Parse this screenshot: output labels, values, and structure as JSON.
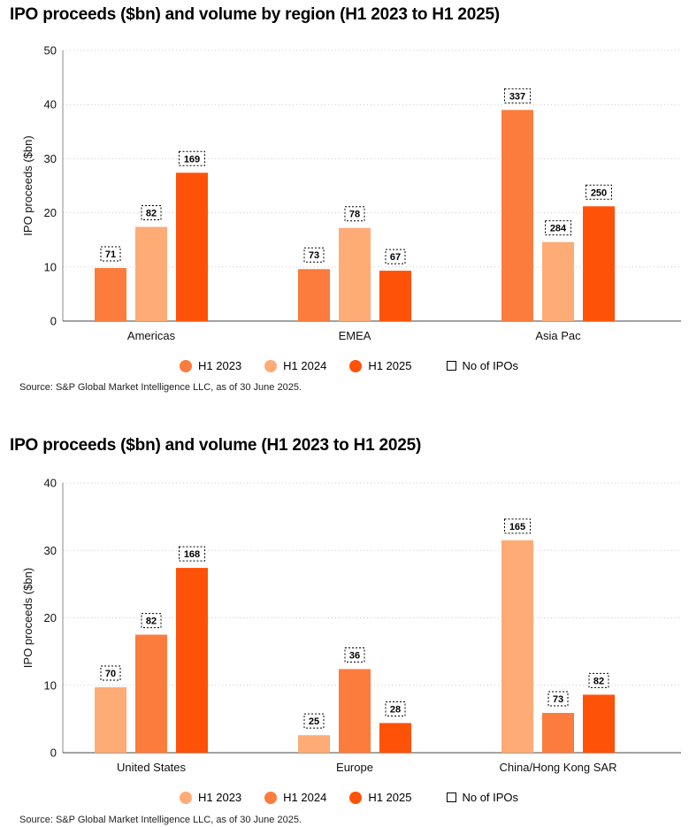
{
  "chart_data": [
    {
      "type": "bar",
      "title": "IPO proceeds ($bn) and volume by region (H1 2023 to H1 2025)",
      "ylabel": "IPO proceeds ($bn)",
      "xlabel": "",
      "ylim": [
        0,
        50
      ],
      "yticks": [
        0,
        10,
        20,
        30,
        40,
        50
      ],
      "grid": true,
      "categories": [
        "Americas",
        "EMEA",
        "Asia Pac"
      ],
      "series": [
        {
          "name": "H1 2023",
          "color": "#fb7c3c",
          "values": [
            9.8,
            9.6,
            39.0
          ],
          "ipo_counts": [
            "71",
            "73",
            "337"
          ]
        },
        {
          "name": "H1 2024",
          "color": "#feab76",
          "values": [
            17.4,
            17.2,
            14.6
          ],
          "ipo_counts": [
            "82",
            "78",
            "284"
          ]
        },
        {
          "name": "H1 2025",
          "color": "#fe5208",
          "values": [
            27.4,
            9.3,
            21.2
          ],
          "ipo_counts": [
            "169",
            "67",
            "250"
          ]
        }
      ],
      "legend_count_label": "No of IPOs",
      "legend_position": "bottom",
      "source": "Source: S&P Global Market Intelligence LLC, as of 30 June 2025."
    },
    {
      "type": "bar",
      "title": "IPO proceeds ($bn) and volume (H1 2023 to H1 2025)",
      "ylabel": "IPO proceeds ($bn)",
      "xlabel": "",
      "ylim": [
        0,
        40
      ],
      "yticks": [
        0,
        10,
        20,
        30,
        40
      ],
      "grid": true,
      "categories": [
        "United States",
        "Europe",
        "China/Hong Kong SAR"
      ],
      "series": [
        {
          "name": "H1 2023",
          "color": "#feab76",
          "values": [
            9.7,
            2.6,
            31.5
          ],
          "ipo_counts": [
            "70",
            "25",
            "165"
          ]
        },
        {
          "name": "H1 2024",
          "color": "#fb7c3c",
          "values": [
            17.5,
            12.4,
            5.9
          ],
          "ipo_counts": [
            "82",
            "36",
            "73"
          ]
        },
        {
          "name": "H1 2025",
          "color": "#fe5208",
          "values": [
            27.4,
            4.4,
            8.6
          ],
          "ipo_counts": [
            "168",
            "28",
            "82"
          ]
        }
      ],
      "legend_count_label": "No of IPOs",
      "legend_position": "bottom",
      "source": "Source: S&P Global Market Intelligence LLC, as of 30 June 2025."
    }
  ]
}
